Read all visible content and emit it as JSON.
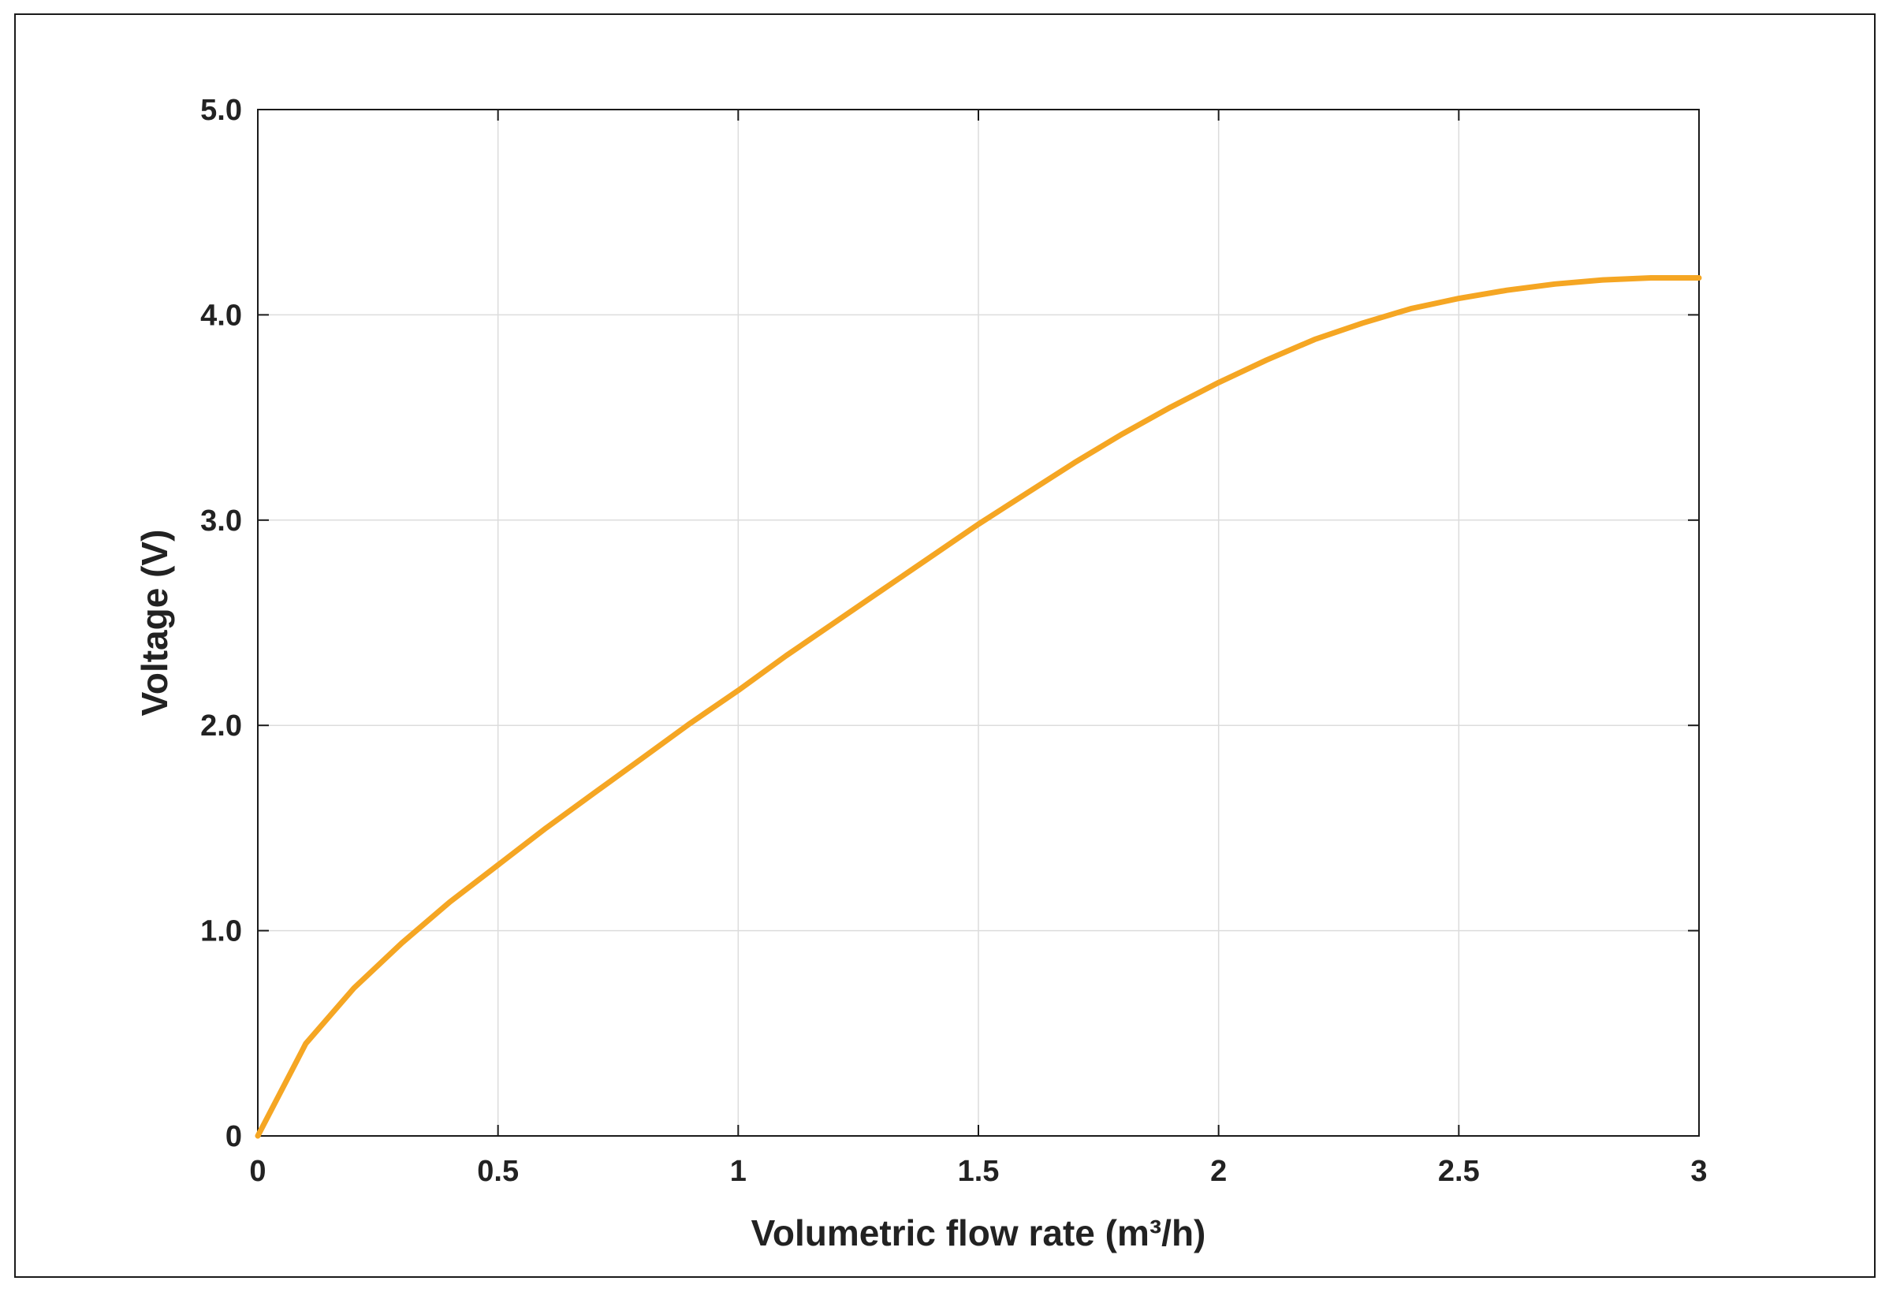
{
  "chart_data": {
    "type": "line",
    "title": "",
    "xlabel": "Volumetric flow rate (m³/h)",
    "ylabel": "Voltage (V)",
    "xlim": [
      0,
      3
    ],
    "ylim": [
      0,
      5
    ],
    "x_ticks": [
      0,
      0.5,
      1,
      1.5,
      2,
      2.5,
      3
    ],
    "x_tick_labels": [
      "0",
      "0.5",
      "1",
      "1.5",
      "2",
      "2.5",
      "3"
    ],
    "y_ticks": [
      0,
      1,
      2,
      3,
      4,
      5
    ],
    "y_tick_labels": [
      "0",
      "1.0",
      "2.0",
      "3.0",
      "4.0",
      "5.0"
    ],
    "grid": true,
    "legend": "none",
    "series": [
      {
        "color": "#f5a623",
        "x": [
          0,
          0.1,
          0.2,
          0.3,
          0.4,
          0.5,
          0.6,
          0.7,
          0.8,
          0.9,
          1.0,
          1.1,
          1.2,
          1.3,
          1.4,
          1.5,
          1.6,
          1.7,
          1.8,
          1.9,
          2.0,
          2.1,
          2.2,
          2.3,
          2.4,
          2.5,
          2.6,
          2.7,
          2.8,
          2.9,
          3.0
        ],
        "y": [
          0,
          0.45,
          0.72,
          0.94,
          1.14,
          1.32,
          1.5,
          1.67,
          1.84,
          2.01,
          2.17,
          2.34,
          2.5,
          2.66,
          2.82,
          2.98,
          3.13,
          3.28,
          3.42,
          3.55,
          3.67,
          3.78,
          3.88,
          3.96,
          4.03,
          4.08,
          4.12,
          4.15,
          4.17,
          4.18,
          4.18
        ]
      }
    ]
  }
}
